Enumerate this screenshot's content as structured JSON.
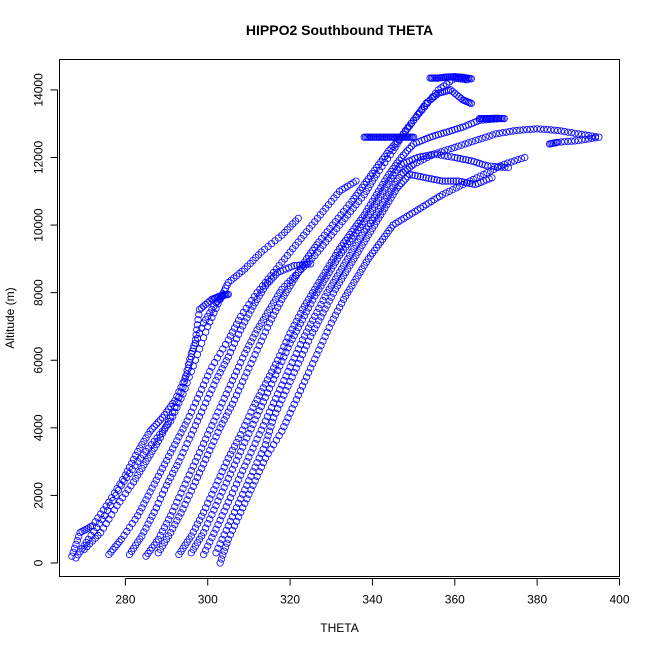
{
  "chart_data": {
    "type": "scatter",
    "title": "HIPPO2 Southbound THETA",
    "xlabel": "THETA",
    "ylabel": "Altitude (m)",
    "xlim": [
      264,
      400
    ],
    "ylim": [
      -400,
      14900
    ],
    "xticks": [
      280,
      300,
      320,
      340,
      360,
      380,
      400
    ],
    "yticks": [
      0,
      2000,
      4000,
      6000,
      8000,
      10000,
      12000,
      14000
    ],
    "marker": "open-circle",
    "color": "#0000ff",
    "grid": false,
    "legend": "none",
    "series": [
      {
        "points": [
          [
            267,
            200
          ],
          [
            269,
            900
          ],
          [
            272,
            1100
          ],
          [
            276,
            1800
          ],
          [
            280,
            2600
          ],
          [
            283,
            3300
          ],
          [
            286,
            3900
          ],
          [
            289,
            4300
          ],
          [
            292,
            4800
          ],
          [
            295,
            5600
          ],
          [
            297,
            6600
          ],
          [
            298,
            7500
          ],
          [
            301,
            7800
          ],
          [
            303,
            7900
          ],
          [
            305,
            7950
          ]
        ]
      },
      {
        "points": [
          [
            268,
            150
          ],
          [
            271,
            700
          ],
          [
            275,
            1400
          ],
          [
            279,
            2300
          ],
          [
            283,
            3000
          ],
          [
            287,
            3600
          ],
          [
            291,
            4200
          ],
          [
            294,
            5000
          ],
          [
            297,
            6000
          ],
          [
            300,
            7000
          ],
          [
            303,
            7800
          ],
          [
            305,
            8300
          ],
          [
            309,
            8700
          ],
          [
            313,
            9200
          ],
          [
            318,
            9700
          ],
          [
            322,
            10200
          ]
        ]
      },
      {
        "points": [
          [
            270,
            400
          ],
          [
            274,
            900
          ],
          [
            278,
            1700
          ],
          [
            282,
            2400
          ],
          [
            285,
            3000
          ],
          [
            288,
            3600
          ],
          [
            291,
            4300
          ],
          [
            294,
            5200
          ],
          [
            296,
            6200
          ],
          [
            299,
            7100
          ],
          [
            302,
            7700
          ],
          [
            304,
            7950
          ]
        ]
      },
      {
        "points": [
          [
            276,
            250
          ],
          [
            279,
            700
          ],
          [
            283,
            1400
          ],
          [
            286,
            2100
          ],
          [
            289,
            2800
          ],
          [
            292,
            3500
          ],
          [
            295,
            4200
          ],
          [
            298,
            5000
          ],
          [
            301,
            5800
          ],
          [
            305,
            6600
          ],
          [
            308,
            7300
          ],
          [
            312,
            8000
          ],
          [
            316,
            8600
          ],
          [
            320,
            9200
          ],
          [
            324,
            9800
          ],
          [
            328,
            10400
          ],
          [
            332,
            11000
          ],
          [
            336,
            11300
          ]
        ]
      },
      {
        "points": [
          [
            281,
            250
          ],
          [
            284,
            800
          ],
          [
            287,
            1500
          ],
          [
            290,
            2300
          ],
          [
            293,
            3000
          ],
          [
            296,
            3800
          ],
          [
            299,
            4600
          ],
          [
            302,
            5400
          ],
          [
            305,
            6100
          ],
          [
            308,
            6900
          ],
          [
            311,
            7600
          ],
          [
            314,
            8200
          ],
          [
            317,
            8600
          ],
          [
            321,
            8800
          ],
          [
            325,
            8850
          ]
        ]
      },
      {
        "points": [
          [
            285,
            200
          ],
          [
            288,
            700
          ],
          [
            291,
            1400
          ],
          [
            294,
            2200
          ],
          [
            297,
            3000
          ],
          [
            300,
            3800
          ],
          [
            303,
            4600
          ],
          [
            306,
            5400
          ],
          [
            309,
            6200
          ],
          [
            312,
            6900
          ],
          [
            315,
            7500
          ],
          [
            318,
            8100
          ],
          [
            322,
            8600
          ],
          [
            326,
            9100
          ],
          [
            330,
            9700
          ],
          [
            334,
            10300
          ],
          [
            338,
            10900
          ],
          [
            341,
            11500
          ],
          [
            345,
            12200
          ],
          [
            348,
            12800
          ],
          [
            352,
            13400
          ],
          [
            356,
            14000
          ],
          [
            360,
            14350
          ],
          [
            363,
            14300
          ]
        ]
      },
      {
        "points": [
          [
            288,
            300
          ],
          [
            291,
            900
          ],
          [
            294,
            1600
          ],
          [
            297,
            2400
          ],
          [
            300,
            3200
          ],
          [
            303,
            4000
          ],
          [
            306,
            4700
          ],
          [
            309,
            5500
          ],
          [
            312,
            6300
          ],
          [
            315,
            7100
          ],
          [
            318,
            7800
          ],
          [
            321,
            8400
          ],
          [
            324,
            9000
          ],
          [
            327,
            9500
          ],
          [
            331,
            10100
          ],
          [
            335,
            10700
          ],
          [
            338,
            11200
          ],
          [
            341,
            11700
          ],
          [
            344,
            12200
          ],
          [
            347,
            12600
          ],
          [
            350,
            13100
          ],
          [
            353,
            13600
          ],
          [
            356,
            13900
          ],
          [
            359,
            14000
          ],
          [
            362,
            13700
          ],
          [
            364,
            13600
          ]
        ]
      },
      {
        "points": [
          [
            293,
            250
          ],
          [
            296,
            800
          ],
          [
            299,
            1500
          ],
          [
            302,
            2300
          ],
          [
            305,
            3100
          ],
          [
            308,
            3800
          ],
          [
            311,
            4600
          ],
          [
            314,
            5300
          ],
          [
            317,
            6000
          ],
          [
            320,
            6800
          ],
          [
            323,
            7500
          ],
          [
            326,
            8100
          ],
          [
            329,
            8700
          ],
          [
            332,
            9300
          ],
          [
            335,
            9800
          ],
          [
            338,
            10300
          ],
          [
            341,
            10900
          ],
          [
            344,
            11500
          ],
          [
            347,
            12000
          ],
          [
            350,
            12400
          ],
          [
            354,
            12600
          ],
          [
            358,
            12750
          ],
          [
            362,
            12900
          ],
          [
            366,
            13100
          ],
          [
            371,
            13150
          ]
        ]
      },
      {
        "points": [
          [
            296,
            300
          ],
          [
            299,
            900
          ],
          [
            302,
            1700
          ],
          [
            305,
            2500
          ],
          [
            308,
            3300
          ],
          [
            311,
            4100
          ],
          [
            314,
            4900
          ],
          [
            317,
            5700
          ],
          [
            320,
            6500
          ],
          [
            323,
            7200
          ],
          [
            326,
            7900
          ],
          [
            329,
            8500
          ],
          [
            332,
            9100
          ],
          [
            335,
            9600
          ],
          [
            338,
            10100
          ],
          [
            341,
            10700
          ],
          [
            344,
            11300
          ],
          [
            347,
            11800
          ],
          [
            351,
            12000
          ],
          [
            355,
            12100
          ],
          [
            360,
            12000
          ],
          [
            364,
            11900
          ],
          [
            368,
            11750
          ],
          [
            373,
            11700
          ]
        ]
      },
      {
        "points": [
          [
            299,
            250
          ],
          [
            302,
            1000
          ],
          [
            305,
            1800
          ],
          [
            308,
            2600
          ],
          [
            311,
            3400
          ],
          [
            314,
            4200
          ],
          [
            317,
            5000
          ],
          [
            320,
            5800
          ],
          [
            323,
            6600
          ],
          [
            326,
            7300
          ],
          [
            329,
            8000
          ],
          [
            332,
            8600
          ],
          [
            335,
            9200
          ],
          [
            338,
            9800
          ],
          [
            341,
            10300
          ],
          [
            344,
            10900
          ],
          [
            347,
            11500
          ],
          [
            350,
            11800
          ],
          [
            355,
            12100
          ],
          [
            360,
            12300
          ],
          [
            365,
            12500
          ],
          [
            370,
            12700
          ],
          [
            375,
            12800
          ],
          [
            380,
            12850
          ],
          [
            385,
            12800
          ],
          [
            390,
            12700
          ],
          [
            395,
            12600
          ],
          [
            390,
            12500
          ],
          [
            385,
            12450
          ],
          [
            383,
            12400
          ]
        ]
      },
      {
        "points": [
          [
            302,
            300
          ],
          [
            305,
            1100
          ],
          [
            308,
            1900
          ],
          [
            311,
            2700
          ],
          [
            314,
            3500
          ],
          [
            316,
            4300
          ],
          [
            319,
            5100
          ],
          [
            322,
            5900
          ],
          [
            325,
            6700
          ],
          [
            328,
            7400
          ],
          [
            331,
            8100
          ],
          [
            334,
            8700
          ],
          [
            337,
            9300
          ],
          [
            340,
            9900
          ],
          [
            343,
            10500
          ],
          [
            346,
            11100
          ],
          [
            349,
            11500
          ],
          [
            353,
            11400
          ],
          [
            357,
            11300
          ],
          [
            361,
            11300
          ],
          [
            365,
            11200
          ],
          [
            369,
            11400
          ]
        ]
      },
      {
        "points": [
          [
            303,
            0
          ],
          [
            305,
            700
          ],
          [
            308,
            1500
          ],
          [
            311,
            2300
          ],
          [
            314,
            3100
          ],
          [
            318,
            3900
          ],
          [
            321,
            4700
          ],
          [
            324,
            5500
          ],
          [
            327,
            6300
          ],
          [
            330,
            7100
          ],
          [
            333,
            7800
          ],
          [
            336,
            8400
          ],
          [
            339,
            9000
          ],
          [
            342,
            9500
          ],
          [
            345,
            10000
          ],
          [
            349,
            10300
          ],
          [
            353,
            10600
          ],
          [
            357,
            10900
          ],
          [
            362,
            11200
          ],
          [
            367,
            11500
          ],
          [
            372,
            11800
          ],
          [
            377,
            12000
          ]
        ]
      },
      {
        "points": [
          [
            338,
            12600
          ],
          [
            340,
            12600
          ],
          [
            342,
            12600
          ],
          [
            344,
            12600
          ],
          [
            346,
            12600
          ],
          [
            348,
            12600
          ],
          [
            350,
            12600
          ]
        ]
      },
      {
        "points": [
          [
            354,
            14350
          ],
          [
            356,
            14350
          ],
          [
            358,
            14380
          ],
          [
            360,
            14390
          ],
          [
            362,
            14370
          ],
          [
            364,
            14330
          ]
        ]
      },
      {
        "points": [
          [
            366,
            13150
          ],
          [
            368,
            13150
          ],
          [
            370,
            13160
          ],
          [
            372,
            13150
          ]
        ]
      }
    ]
  }
}
